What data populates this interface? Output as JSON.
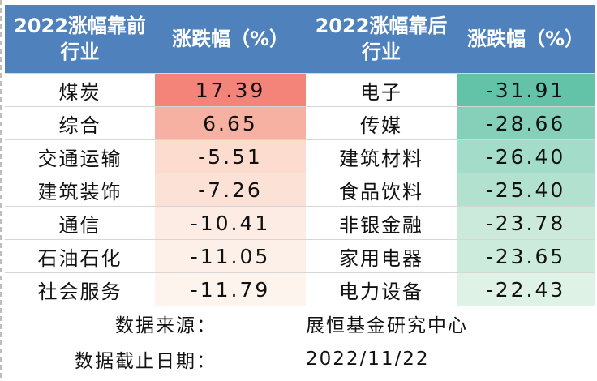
{
  "header": {
    "left_industry_line1": "2022涨幅靠前",
    "left_industry_line2": "行业",
    "left_change": "涨跌幅（%）",
    "right_industry_line1": "2022涨幅靠后",
    "right_industry_line2": "行业",
    "right_change": "涨跌幅（%）"
  },
  "rows": [
    {
      "top_name": "煤炭",
      "top_value": "17.39",
      "top_color": "#f4837a",
      "bottom_name": "电子",
      "bottom_value": "-31.91",
      "bottom_color": "#63c3a9"
    },
    {
      "top_name": "综合",
      "top_value": "6.65",
      "top_color": "#f7b1a3",
      "bottom_name": "传媒",
      "bottom_value": "-28.66",
      "bottom_color": "#86d0ba"
    },
    {
      "top_name": "交通运输",
      "top_value": "-5.51",
      "top_color": "#fbdccf",
      "bottom_name": "建筑材料",
      "bottom_value": "-26.40",
      "bottom_color": "#a3dcc8"
    },
    {
      "top_name": "建筑装饰",
      "top_value": "-7.26",
      "top_color": "#fce2d6",
      "bottom_name": "食品饮料",
      "bottom_value": "-25.40",
      "bottom_color": "#b2e1cf"
    },
    {
      "top_name": "通信",
      "top_value": "-10.41",
      "top_color": "#fdece3",
      "bottom_name": "非银金融",
      "bottom_value": "-23.78",
      "bottom_color": "#cbeadb"
    },
    {
      "top_name": "石油石化",
      "top_value": "-11.05",
      "top_color": "#fdf0e8",
      "bottom_name": "家用电器",
      "bottom_value": "-23.65",
      "bottom_color": "#cdebdd"
    },
    {
      "top_name": "社会服务",
      "top_value": "-11.79",
      "top_color": "#fef4ee",
      "bottom_name": "电力设备",
      "bottom_value": "-22.43",
      "bottom_color": "#def2e6"
    }
  ],
  "footer": {
    "source_label": "数据来源：",
    "source_value": "展恒基金研究中心",
    "date_label": "数据截止日期：",
    "date_value": "2022/11/22"
  },
  "colors": {
    "header_bg": "#4f81bd",
    "header_text": "#ffffff"
  }
}
